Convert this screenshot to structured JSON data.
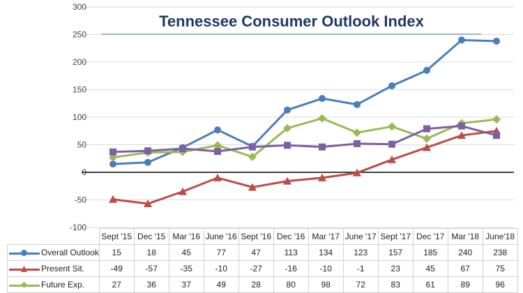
{
  "chart_data": {
    "type": "line",
    "title": "Tennessee Consumer Outlook Index",
    "xlabel": "",
    "ylabel": "",
    "ylim": [
      -100,
      300
    ],
    "yticks": [
      -100,
      -50,
      0,
      50,
      100,
      150,
      200,
      250,
      300
    ],
    "grid": true,
    "legend": "data-table-below",
    "categories": [
      "Sept '15",
      "Dec '15",
      "Mar '16",
      "June '16",
      "Sept '16",
      "Dec '16",
      "Mar '17",
      "June '17",
      "Sept '17",
      "Dec '17",
      "Mar '18",
      "June'18"
    ],
    "series": [
      {
        "name": "Overall Outlook",
        "color": "#4a7ebb",
        "marker": "circle",
        "values": [
          15,
          18,
          45,
          77,
          47,
          113,
          134,
          123,
          157,
          185,
          240,
          238
        ]
      },
      {
        "name": "Present Sit.",
        "color": "#be4b48",
        "marker": "triangle",
        "values": [
          -49,
          -57,
          -35,
          -10,
          -27,
          -16,
          -10,
          -1,
          23,
          45,
          67,
          75
        ]
      },
      {
        "name": "Future Exp.",
        "color": "#98b954",
        "marker": "diamond",
        "values": [
          27,
          36,
          37,
          49,
          28,
          80,
          98,
          72,
          83,
          61,
          89,
          96
        ]
      },
      {
        "name": "",
        "color": "#7d60a0",
        "marker": "square",
        "values": [
          37,
          39,
          43,
          38,
          46,
          49,
          46,
          52,
          51,
          79,
          84,
          67
        ]
      }
    ]
  }
}
